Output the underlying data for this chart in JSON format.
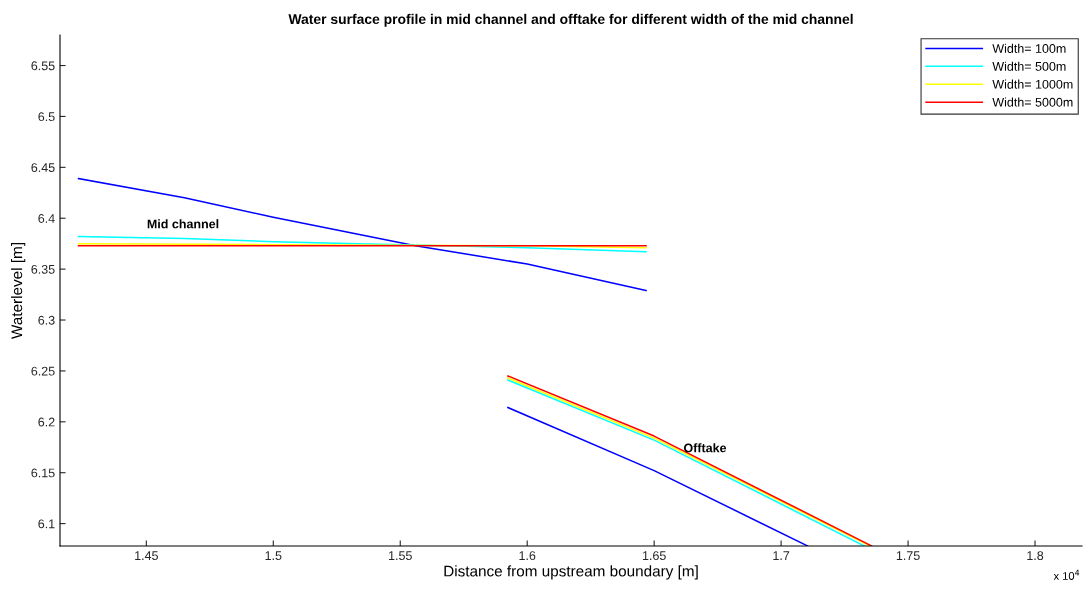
{
  "chart_data": {
    "type": "line",
    "title": "Water surface profile in mid channel and offtake for different width of the mid channel",
    "xlabel": "Distance from upstream boundary [m]",
    "ylabel": "Waterlevel [m]",
    "series": [
      {
        "name": "Width= 100m",
        "color": "#0000ff",
        "x": [
          1.4233,
          1.465,
          1.5,
          1.556,
          1.6,
          1.6468,
          null,
          1.5924,
          1.65,
          1.7105
        ],
        "values": [
          6.439,
          6.42,
          6.401,
          6.373,
          6.355,
          6.329,
          null,
          6.214,
          6.152,
          6.078
        ]
      },
      {
        "name": "Width= 500m",
        "color": "#00ffff",
        "x": [
          1.4233,
          1.465,
          1.5,
          1.55,
          1.6,
          1.6468,
          null,
          1.5924,
          1.65,
          1.7328
        ],
        "values": [
          6.382,
          6.38,
          6.377,
          6.374,
          6.371,
          6.367,
          null,
          6.241,
          6.182,
          6.078
        ]
      },
      {
        "name": "Width= 1000m",
        "color": "#ffff00",
        "x": [
          1.4233,
          1.5,
          1.6,
          1.6468,
          null,
          1.5924,
          1.65,
          1.735
        ],
        "values": [
          6.375,
          6.374,
          6.373,
          6.371,
          null,
          6.243,
          6.184,
          6.078
        ]
      },
      {
        "name": "Width= 5000m",
        "color": "#ff0000",
        "x": [
          1.4233,
          1.5,
          1.6,
          1.6468,
          null,
          1.5924,
          1.65,
          1.7357
        ],
        "values": [
          6.373,
          6.373,
          6.373,
          6.373,
          null,
          6.245,
          6.186,
          6.078
        ]
      }
    ],
    "xlim": [
      1.416,
      1.8185
    ],
    "ylim": [
      6.078,
      6.58
    ],
    "xticks": [
      1.45,
      1.5,
      1.55,
      1.6,
      1.65,
      1.7,
      1.75,
      1.8
    ],
    "yticks": [
      6.1,
      6.15,
      6.2,
      6.25,
      6.3,
      6.35,
      6.4,
      6.45,
      6.5,
      6.55
    ],
    "annotations": [
      "Mid channel",
      "Offtake",
      "x 10$^{4}$"
    ],
    "legend": "top right",
    "grid": false,
    "marker": "none",
    "line_style": "solid"
  }
}
